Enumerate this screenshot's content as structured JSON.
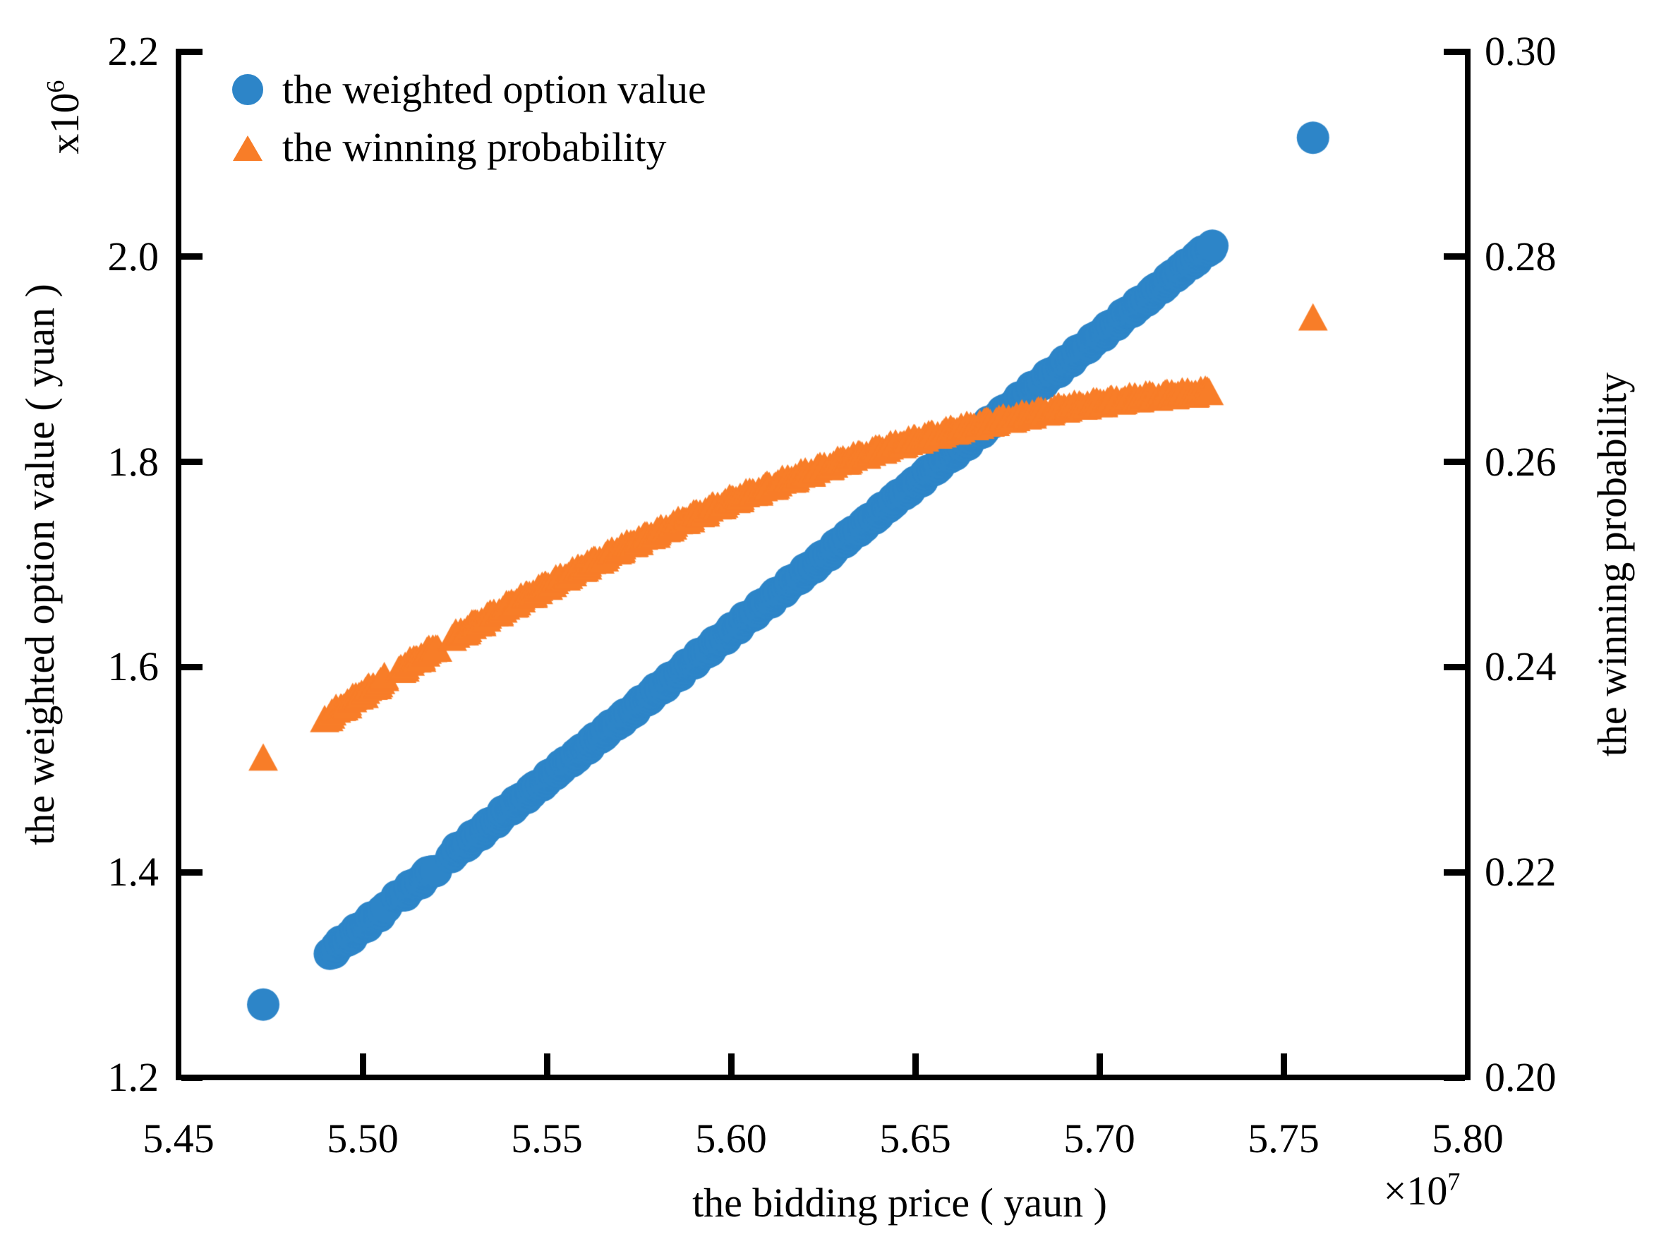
{
  "figure": {
    "background": "#ffffff",
    "text_color": "#000000",
    "axis_color": "#000000"
  },
  "legend": {
    "items": [
      {
        "label": "the weighted option value",
        "marker": "circle-icon",
        "color": "#2D85C8"
      },
      {
        "label": "the winning probability",
        "marker": "triangle-icon",
        "color": "#F87D28"
      }
    ]
  },
  "axes": {
    "x": {
      "label": "the bidding price ( yaun )",
      "offset_base": "×10",
      "offset_exp": "7",
      "ticks": [
        "5.45",
        "5.50",
        "5.55",
        "5.60",
        "5.65",
        "5.70",
        "5.75",
        "5.80"
      ]
    },
    "y_left": {
      "label": "the weighted option value ( yuan )",
      "offset_base": "x10",
      "offset_exp": "6",
      "ticks": [
        "2.2",
        "2.0",
        "1.8",
        "1.6",
        "1.4",
        "1.2"
      ]
    },
    "y_right": {
      "label": "the winning probability",
      "ticks": [
        "0.30",
        "0.28",
        "0.26",
        "0.24",
        "0.22",
        "0.20"
      ]
    }
  },
  "chart_data": {
    "type": "scatter",
    "x_range": [
      5.45,
      5.8
    ],
    "y_left_range": [
      1.2,
      2.2
    ],
    "y_right_range": [
      0.2,
      0.3
    ],
    "x_scale_factor": "1e7",
    "y_left_scale_factor": "1e6",
    "grid": false,
    "legend_position": "upper-left-inside",
    "series": [
      {
        "name": "the weighted option value",
        "axis": "left",
        "marker": "circle",
        "color": "#2D85C8",
        "points": [
          [
            5.4914,
            1.322
          ],
          [
            5.5014,
            1.3508
          ],
          [
            5.5114,
            1.3796
          ],
          [
            5.5213,
            1.4081
          ],
          [
            5.5313,
            1.4369
          ],
          [
            5.5413,
            1.4657
          ],
          [
            5.5513,
            1.4945
          ],
          [
            5.5612,
            1.523
          ],
          [
            5.5712,
            1.5518
          ],
          [
            5.5812,
            1.5806
          ],
          [
            5.5911,
            1.6091
          ],
          [
            5.6011,
            1.6379
          ],
          [
            5.6111,
            1.6667
          ],
          [
            5.6211,
            1.6954
          ],
          [
            5.631,
            1.724
          ],
          [
            5.641,
            1.7527
          ],
          [
            5.651,
            1.7815
          ],
          [
            5.661,
            1.8103
          ],
          [
            5.6709,
            1.8388
          ],
          [
            5.6809,
            1.8676
          ],
          [
            5.6909,
            1.8964
          ],
          [
            5.7008,
            1.9249
          ],
          [
            5.7108,
            1.9537
          ],
          [
            5.7208,
            1.9825
          ],
          [
            5.7307,
            2.011
          ]
        ],
        "outliers": [
          [
            5.473,
            1.271
          ],
          [
            5.758,
            2.116
          ]
        ],
        "gaps": [
          [
            5.5065,
            5.5095
          ],
          [
            5.52,
            5.524
          ]
        ]
      },
      {
        "name": "the winning probability",
        "axis": "right",
        "marker": "triangle",
        "color": "#F87D28",
        "points": [
          [
            5.49,
            0.2349
          ],
          [
            5.5,
            0.2373
          ],
          [
            5.51,
            0.2396
          ],
          [
            5.52,
            0.2418
          ],
          [
            5.53,
            0.2439
          ],
          [
            5.54,
            0.2459
          ],
          [
            5.55,
            0.2478
          ],
          [
            5.56,
            0.2496
          ],
          [
            5.57,
            0.2514
          ],
          [
            5.58,
            0.253
          ],
          [
            5.59,
            0.2546
          ],
          [
            5.6,
            0.2561
          ],
          [
            5.61,
            0.2574
          ],
          [
            5.62,
            0.2587
          ],
          [
            5.63,
            0.2599
          ],
          [
            5.64,
            0.261
          ],
          [
            5.65,
            0.262
          ],
          [
            5.66,
            0.2629
          ],
          [
            5.67,
            0.2637
          ],
          [
            5.68,
            0.2644
          ],
          [
            5.69,
            0.2651
          ],
          [
            5.7,
            0.2656
          ],
          [
            5.71,
            0.2661
          ],
          [
            5.72,
            0.2664
          ],
          [
            5.73,
            0.2667
          ]
        ],
        "outliers": [
          [
            5.473,
            0.231
          ],
          [
            5.758,
            0.2739
          ]
        ],
        "gaps": [
          [
            5.5065,
            5.5095
          ],
          [
            5.52,
            5.524
          ]
        ]
      }
    ]
  }
}
